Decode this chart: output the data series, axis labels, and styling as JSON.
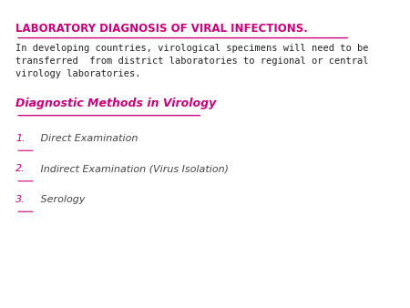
{
  "title": "LABORATORY DIAGNOSIS OF VIRAL INFECTIONS.",
  "title_color": "#cc007a",
  "body_text": "In developing countries, virological specimens will need to be transferred from district laboratories to regional or central virology laboratories.",
  "body_color": "#222222",
  "subtitle": "Diagnostic Methods in Virology",
  "subtitle_color": "#cc007a",
  "list_items": [
    {
      "num": "1.",
      "text": " Direct Examination"
    },
    {
      "num": "2.",
      "text": " Indirect Examination (Virus Isolation)"
    },
    {
      "num": "3.",
      "text": " Serology"
    }
  ],
  "list_num_color": "#cc007a",
  "list_text_color": "#444444",
  "background_color": "#ffffff"
}
